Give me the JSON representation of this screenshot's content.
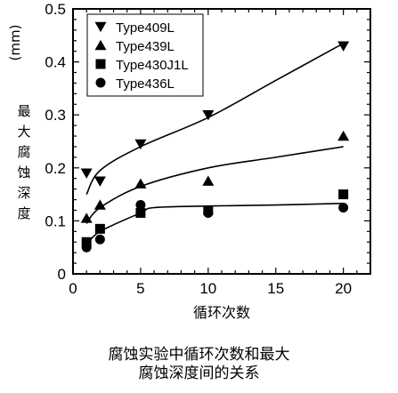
{
  "chart_data": {
    "type": "scatter",
    "title": "",
    "xlabel": "循环次数",
    "ylabel_unit": "(mm)",
    "ylabel": "最大腐蚀深度",
    "xlim": [
      0,
      22
    ],
    "ylim": [
      0,
      0.5
    ],
    "x_ticks": [
      0,
      5,
      10,
      15,
      20
    ],
    "y_ticks": [
      0,
      0.1,
      0.2,
      0.3,
      0.4,
      0.5
    ],
    "y_tick_labels": [
      "0",
      "0.1",
      "0.2",
      "0.3",
      "0.4",
      "0.5"
    ],
    "legend_position": "top-left",
    "series": [
      {
        "name": "Type409L",
        "marker": "triangle-down",
        "points": [
          [
            1,
            0.19
          ],
          [
            2,
            0.175
          ],
          [
            5,
            0.245
          ],
          [
            10,
            0.3
          ],
          [
            20,
            0.43
          ]
        ]
      },
      {
        "name": "Type439L",
        "marker": "triangle-up",
        "points": [
          [
            1,
            0.105
          ],
          [
            2,
            0.13
          ],
          [
            5,
            0.17
          ],
          [
            10,
            0.175
          ],
          [
            20,
            0.26
          ]
        ]
      },
      {
        "name": "Type430J1L",
        "marker": "square",
        "points": [
          [
            1,
            0.06
          ],
          [
            2,
            0.085
          ],
          [
            5,
            0.115
          ],
          [
            10,
            0.12
          ],
          [
            20,
            0.15
          ]
        ]
      },
      {
        "name": "Type436L",
        "marker": "circle",
        "points": [
          [
            1,
            0.05
          ],
          [
            2,
            0.065
          ],
          [
            5,
            0.13
          ],
          [
            10,
            0.115
          ],
          [
            20,
            0.125
          ]
        ]
      }
    ],
    "trend_curves": [
      {
        "points": [
          [
            1,
            0.15
          ],
          [
            2,
            0.195
          ],
          [
            5,
            0.24
          ],
          [
            10,
            0.295
          ],
          [
            15,
            0.365
          ],
          [
            20,
            0.435
          ]
        ]
      },
      {
        "points": [
          [
            1,
            0.095
          ],
          [
            2,
            0.125
          ],
          [
            5,
            0.165
          ],
          [
            10,
            0.2
          ],
          [
            15,
            0.22
          ],
          [
            20,
            0.24
          ]
        ]
      },
      {
        "points": [
          [
            1,
            0.055
          ],
          [
            2,
            0.08
          ],
          [
            5,
            0.115
          ],
          [
            6,
            0.125
          ],
          [
            10,
            0.128
          ],
          [
            15,
            0.13
          ],
          [
            20,
            0.133
          ]
        ]
      }
    ]
  },
  "caption": {
    "line1": "腐蚀实验中循环次数和最大",
    "line2": "腐蚀深度间的关系"
  }
}
